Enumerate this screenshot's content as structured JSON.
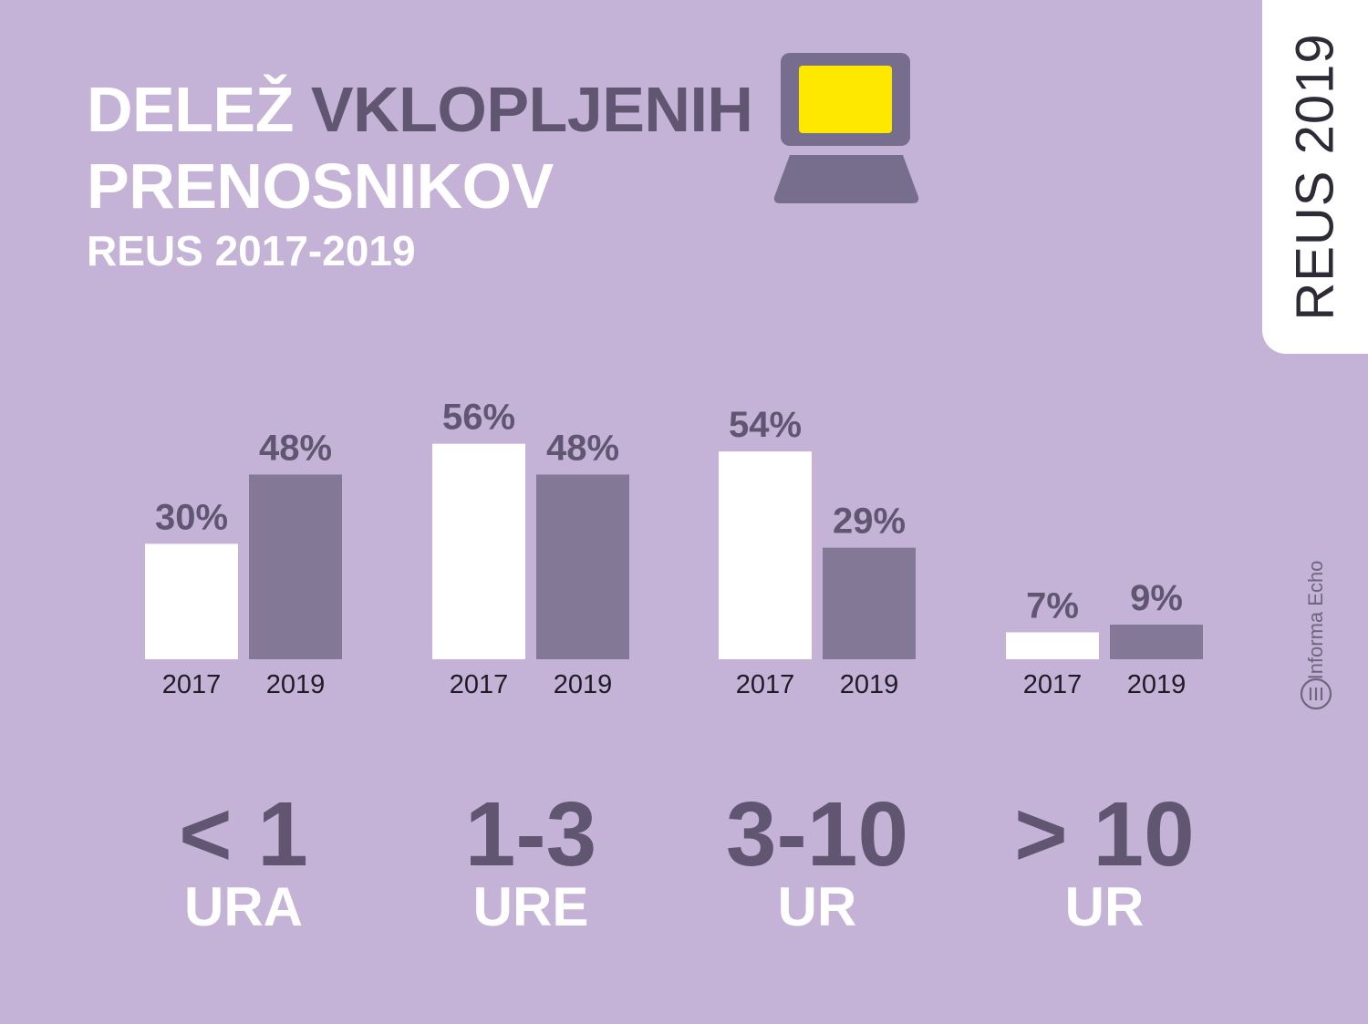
{
  "header": {
    "title_line1_white": "DELEŽ",
    "title_line1_dark": "VKLOPLJENIH",
    "title_line2": "PRENOSNIKOV",
    "subtitle": "REUS 2017-2019"
  },
  "side_tab": {
    "label": "REUS 2019"
  },
  "brand": {
    "label": "Informa Echo"
  },
  "colors": {
    "background": "#c5b3d7",
    "series_2017": "#ffffff",
    "series_2019": "#837895",
    "label_dark": "#615672",
    "laptop_screen": "#ffe800",
    "laptop_body": "#776d8c"
  },
  "chart_data": {
    "type": "bar",
    "categories": [
      "< 1 URA",
      "1-3 URE",
      "3-10 UR",
      "> 10 UR"
    ],
    "series": [
      {
        "name": "2017",
        "values": [
          30,
          56,
          54,
          7
        ]
      },
      {
        "name": "2019",
        "values": [
          48,
          48,
          29,
          9
        ]
      }
    ],
    "value_labels": [
      [
        "30%",
        "56%",
        "54%",
        "7%"
      ],
      [
        "48%",
        "48%",
        "29%",
        "9%"
      ]
    ],
    "x_tick_labels": [
      "2017",
      "2019"
    ],
    "unit": "%",
    "ylim": [
      0,
      100
    ],
    "grid": false
  },
  "groups": [
    {
      "number": "< 1",
      "unit": "URA"
    },
    {
      "number": "1-3",
      "unit": "URE"
    },
    {
      "number": "3-10",
      "unit": "UR"
    },
    {
      "number": "> 10",
      "unit": "UR"
    }
  ]
}
